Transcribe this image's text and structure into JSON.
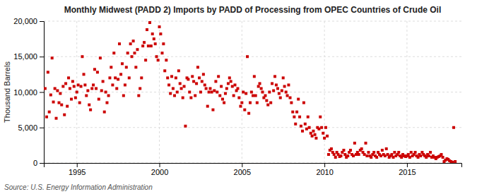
{
  "chart_data": {
    "type": "scatter",
    "title": "Monthly Midwest (PADD 2) Imports by PADD of Processing from OPEC Countries of Crude Oil",
    "ylabel": "Thousand Barrels",
    "annotations": [
      "Source: U.S. Energy Information Administration"
    ],
    "color": "#cc0000",
    "marker": "square",
    "grid": true,
    "xlim": [
      1993.0,
      2018.3
    ],
    "xticks": [
      1995,
      2000,
      2005,
      2010,
      2015
    ],
    "ylim": [
      0,
      20000
    ],
    "yticks": [
      0,
      {
        "value": 5000,
        "label": "5,000"
      },
      {
        "value": 10000,
        "label": "10,000"
      },
      {
        "value": 15000,
        "label": "15,000"
      },
      {
        "value": 20000,
        "label": "20,000"
      }
    ],
    "x": [
      1993.08,
      1993.17,
      1993.25,
      1993.33,
      1993.42,
      1993.5,
      1993.58,
      1993.67,
      1993.75,
      1993.83,
      1993.92,
      1994.0,
      1994.08,
      1994.17,
      1994.25,
      1994.33,
      1994.42,
      1994.5,
      1994.58,
      1994.67,
      1994.75,
      1994.83,
      1994.92,
      1995.0,
      1995.08,
      1995.17,
      1995.25,
      1995.33,
      1995.42,
      1995.5,
      1995.58,
      1995.67,
      1995.75,
      1995.83,
      1995.92,
      1996.0,
      1996.08,
      1996.17,
      1996.25,
      1996.33,
      1996.42,
      1996.5,
      1996.58,
      1996.67,
      1996.75,
      1996.83,
      1996.92,
      1997.0,
      1997.08,
      1997.17,
      1997.25,
      1997.33,
      1997.42,
      1997.5,
      1997.58,
      1997.67,
      1997.75,
      1997.83,
      1997.92,
      1998.0,
      1998.08,
      1998.17,
      1998.25,
      1998.33,
      1998.42,
      1998.5,
      1998.58,
      1998.67,
      1998.75,
      1998.83,
      1998.92,
      1999.0,
      1999.08,
      1999.17,
      1999.25,
      1999.33,
      1999.42,
      1999.5,
      1999.58,
      1999.67,
      1999.75,
      1999.83,
      1999.92,
      2000.0,
      2000.08,
      2000.17,
      2000.25,
      2000.33,
      2000.42,
      2000.5,
      2000.58,
      2000.67,
      2000.75,
      2000.83,
      2000.92,
      2001.0,
      2001.08,
      2001.17,
      2001.25,
      2001.33,
      2001.42,
      2001.5,
      2001.58,
      2001.67,
      2001.75,
      2001.83,
      2001.92,
      2002.0,
      2002.08,
      2002.17,
      2002.25,
      2002.33,
      2002.42,
      2002.5,
      2002.58,
      2002.67,
      2002.75,
      2002.83,
      2002.92,
      2003.0,
      2003.08,
      2003.17,
      2003.25,
      2003.33,
      2003.42,
      2003.5,
      2003.58,
      2003.67,
      2003.75,
      2003.83,
      2003.92,
      2004.0,
      2004.08,
      2004.17,
      2004.25,
      2004.33,
      2004.42,
      2004.5,
      2004.58,
      2004.67,
      2004.75,
      2004.83,
      2004.92,
      2005.0,
      2005.08,
      2005.17,
      2005.25,
      2005.33,
      2005.42,
      2005.5,
      2005.58,
      2005.67,
      2005.75,
      2005.83,
      2005.92,
      2006.0,
      2006.08,
      2006.17,
      2006.25,
      2006.33,
      2006.42,
      2006.5,
      2006.58,
      2006.67,
      2006.75,
      2006.83,
      2006.92,
      2007.0,
      2007.08,
      2007.17,
      2007.25,
      2007.33,
      2007.42,
      2007.5,
      2007.58,
      2007.67,
      2007.75,
      2007.83,
      2007.92,
      2008.0,
      2008.08,
      2008.17,
      2008.25,
      2008.33,
      2008.42,
      2008.5,
      2008.58,
      2008.67,
      2008.75,
      2008.83,
      2008.92,
      2009.0,
      2009.08,
      2009.17,
      2009.25,
      2009.33,
      2009.42,
      2009.5,
      2009.58,
      2009.67,
      2009.75,
      2009.83,
      2009.92,
      2010.0,
      2010.08,
      2010.17,
      2010.25,
      2010.33,
      2010.42,
      2010.5,
      2010.58,
      2010.67,
      2010.75,
      2010.83,
      2010.92,
      2011.0,
      2011.08,
      2011.17,
      2011.25,
      2011.33,
      2011.42,
      2011.5,
      2011.58,
      2011.67,
      2011.75,
      2011.83,
      2011.92,
      2012.0,
      2012.08,
      2012.17,
      2012.25,
      2012.33,
      2012.42,
      2012.5,
      2012.58,
      2012.67,
      2012.75,
      2012.83,
      2012.92,
      2013.0,
      2013.08,
      2013.17,
      2013.25,
      2013.33,
      2013.42,
      2013.5,
      2013.58,
      2013.67,
      2013.75,
      2013.83,
      2013.92,
      2014.0,
      2014.08,
      2014.17,
      2014.25,
      2014.33,
      2014.42,
      2014.5,
      2014.58,
      2014.67,
      2014.75,
      2014.83,
      2014.92,
      2015.0,
      2015.08,
      2015.17,
      2015.25,
      2015.33,
      2015.42,
      2015.5,
      2015.58,
      2015.67,
      2015.75,
      2015.83,
      2015.92,
      2016.0,
      2016.08,
      2016.17,
      2016.25,
      2016.33,
      2016.42,
      2016.5,
      2016.58,
      2016.67,
      2016.75,
      2016.83,
      2016.92,
      2017.0,
      2017.08,
      2017.17,
      2017.25,
      2017.33,
      2017.42,
      2017.5,
      2017.58,
      2017.67,
      2017.75,
      2017.83,
      2017.92
    ],
    "values": [
      10500,
      6500,
      12800,
      7200,
      9600,
      14800,
      8600,
      10500,
      6300,
      10200,
      8500,
      9800,
      8200,
      10800,
      6800,
      11200,
      8000,
      12000,
      10500,
      9000,
      11500,
      10800,
      9200,
      10000,
      11000,
      8500,
      10800,
      15000,
      12500,
      11000,
      9500,
      10200,
      8200,
      7500,
      10500,
      11000,
      13200,
      10500,
      12800,
      9000,
      14800,
      10200,
      11500,
      7200,
      10000,
      8500,
      9500,
      12000,
      13500,
      11000,
      15500,
      12000,
      10500,
      11800,
      16800,
      12500,
      14000,
      9500,
      11000,
      13500,
      15500,
      12000,
      16800,
      15000,
      17200,
      15500,
      13500,
      16000,
      9500,
      10500,
      12000,
      16500,
      17000,
      14500,
      18800,
      16500,
      19800,
      16500,
      18200,
      17500,
      16800,
      15000,
      14500,
      19200,
      18200,
      15500,
      16800,
      13000,
      14500,
      12000,
      11000,
      9800,
      12200,
      10500,
      9500,
      12000,
      10000,
      13000,
      11200,
      10500,
      9200,
      10800,
      5200,
      12000,
      11800,
      10000,
      9200,
      12200,
      11500,
      9500,
      11200,
      13500,
      12000,
      10000,
      11500,
      12500,
      11000,
      10500,
      8000,
      10000,
      10500,
      10000,
      7500,
      10200,
      11500,
      10000,
      12200,
      9500,
      10800,
      9000,
      8500,
      9800,
      10500,
      11200,
      12000,
      11500,
      10800,
      9500,
      11000,
      10200,
      10500,
      9200,
      8000,
      8500,
      10000,
      7500,
      9800,
      15000,
      7000,
      8500,
      10000,
      9500,
      12200,
      9500,
      8500,
      10800,
      11200,
      10500,
      10000,
      9200,
      9500,
      8800,
      8200,
      10000,
      8500,
      11200,
      10200,
      12200,
      11000,
      10500,
      9800,
      9200,
      10200,
      12000,
      10800,
      10000,
      9500,
      11000,
      9200,
      8500,
      7200,
      6500,
      5500,
      7200,
      9000,
      6500,
      5200,
      4500,
      8500,
      5500,
      4800,
      6500,
      5000,
      4200,
      3800,
      4500,
      4000,
      3500,
      5000,
      4800,
      6500,
      5000,
      4200,
      3500,
      5000,
      3800,
      1200,
      1800,
      2000,
      1500,
      1200,
      800,
      1500,
      1200,
      900,
      1000,
      1500,
      1800,
      1200,
      800,
      1000,
      1500,
      1800,
      1200,
      1000,
      2800,
      1200,
      1500,
      1200,
      1800,
      2000,
      1500,
      1200,
      2800,
      1000,
      1500,
      1000,
      800,
      1200,
      1500,
      1000,
      800,
      1500,
      1200,
      1000,
      1800,
      1200,
      1000,
      2000,
      1200,
      800,
      1000,
      1200,
      800,
      1500,
      1000,
      1200,
      1500,
      1000,
      800,
      1200,
      1000,
      900,
      1000,
      1200,
      800,
      1500,
      1000,
      1200,
      1500,
      1000,
      800,
      1200,
      1000,
      1500,
      1200,
      1000,
      800,
      1200,
      1000,
      1500,
      800,
      1000,
      800,
      600,
      800,
      900,
      1000,
      1200,
      800,
      200,
      400,
      600,
      500,
      300,
      200,
      100,
      5000,
      200
    ]
  }
}
